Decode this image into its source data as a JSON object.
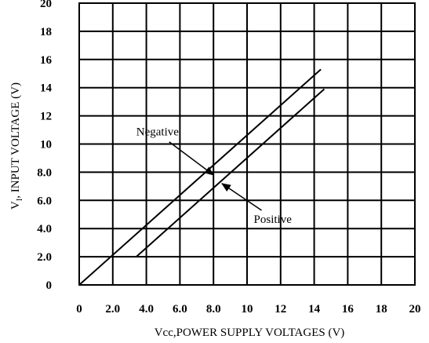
{
  "chart_data": {
    "type": "line",
    "xlabel": "Vcc,POWER SUPPLY VOLTAGES (V)",
    "ylabel": "VI, INPUT VOLTAGE (V)",
    "xlim": [
      0,
      20
    ],
    "ylim": [
      0,
      20
    ],
    "grid": true,
    "legend": "none",
    "x_ticks": [
      "0",
      "2.0",
      "4.0",
      "6.0",
      "8.0",
      "10",
      "12",
      "14",
      "16",
      "18",
      "20"
    ],
    "y_ticks": [
      "0",
      "2.0",
      "4.0",
      "6.0",
      "8.0",
      "10",
      "12",
      "14",
      "16",
      "18",
      "20"
    ],
    "series": [
      {
        "name": "Negative",
        "x": [
          0,
          14.4
        ],
        "y": [
          0,
          15.3
        ]
      },
      {
        "name": "Positive",
        "x": [
          3.4,
          14.6
        ],
        "y": [
          2.0,
          13.9
        ]
      }
    ],
    "annotations": [
      {
        "text": "Negative",
        "label_at": [
          3.4,
          10.6
        ],
        "arrow_to": [
          8.0,
          7.8
        ]
      },
      {
        "text": "Positive",
        "label_at": [
          10.4,
          4.4
        ],
        "arrow_to": [
          8.5,
          7.2
        ]
      }
    ]
  }
}
